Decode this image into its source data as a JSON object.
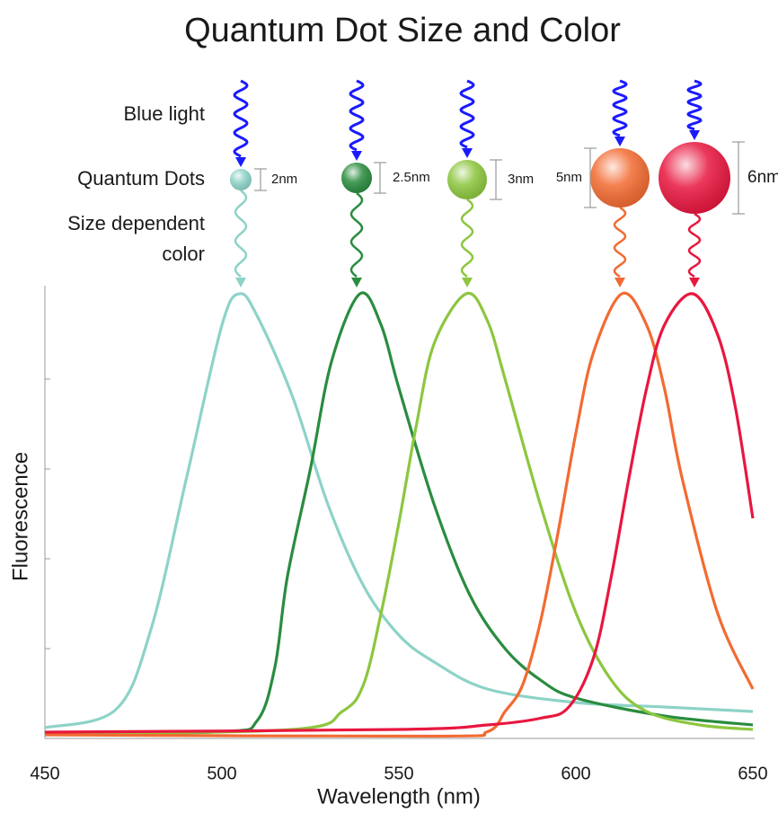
{
  "chart_data": {
    "type": "line",
    "title": "Quantum Dot Size and Color",
    "xlabel": "Wavelength (nm)",
    "ylabel": "Fluorescence",
    "row_labels": [
      "Blue light",
      "Quantum Dots",
      "Size dependent",
      "color"
    ],
    "xlim": [
      450,
      650
    ],
    "xticks": [
      450,
      500,
      550,
      600,
      650
    ],
    "ylim": [
      0,
      1
    ],
    "yticks": [
      0.2,
      0.4,
      0.6,
      0.8
    ],
    "excitation_color": "#1a1aff",
    "series": [
      {
        "label": "2nm",
        "color": "#8dd3c7",
        "x": [
          450,
          470,
          480,
          490,
          500,
          505,
          510,
          520,
          530,
          540,
          550,
          560,
          575,
          600,
          625,
          650
        ],
        "values": [
          0.024,
          0.064,
          0.244,
          0.58,
          0.92,
          0.99,
          0.94,
          0.76,
          0.52,
          0.34,
          0.23,
          0.17,
          0.11,
          0.08,
          0.07,
          0.06
        ]
      },
      {
        "label": "2.5nm",
        "color": "#2a8c3f",
        "x": [
          450,
          500,
          510,
          515,
          518.5,
          525,
          531,
          539,
          545,
          550,
          560,
          570,
          580,
          590,
          600,
          625,
          650
        ],
        "values": [
          0.01,
          0.015,
          0.04,
          0.16,
          0.36,
          0.6,
          0.84,
          0.99,
          0.92,
          0.78,
          0.52,
          0.32,
          0.2,
          0.13,
          0.09,
          0.05,
          0.03
        ]
      },
      {
        "label": "3nm",
        "color": "#8dc63f",
        "x": [
          450,
          520,
          534,
          540,
          545,
          550,
          555,
          560,
          569,
          575,
          580,
          590,
          600,
          610,
          620,
          635,
          650
        ],
        "values": [
          0.01,
          0.02,
          0.06,
          0.12,
          0.28,
          0.48,
          0.7,
          0.88,
          0.99,
          0.93,
          0.8,
          0.52,
          0.28,
          0.13,
          0.06,
          0.03,
          0.02
        ]
      },
      {
        "label": "5nm",
        "color": "#f26b32",
        "x": [
          450,
          560,
          575,
          580,
          585,
          590,
          595,
          600,
          605,
          613,
          620,
          625,
          630,
          640,
          650
        ],
        "values": [
          0.008,
          0.005,
          0.015,
          0.06,
          0.12,
          0.26,
          0.46,
          0.68,
          0.86,
          0.99,
          0.92,
          0.78,
          0.58,
          0.28,
          0.11
        ]
      },
      {
        "label": "6nm",
        "color": "#e8173f",
        "x": [
          450,
          550,
          575,
          590,
          598,
          605,
          610,
          615,
          620,
          625,
          633,
          640,
          645,
          650
        ],
        "values": [
          0.014,
          0.02,
          0.03,
          0.045,
          0.07,
          0.18,
          0.36,
          0.58,
          0.78,
          0.92,
          0.99,
          0.9,
          0.74,
          0.49
        ]
      }
    ]
  }
}
